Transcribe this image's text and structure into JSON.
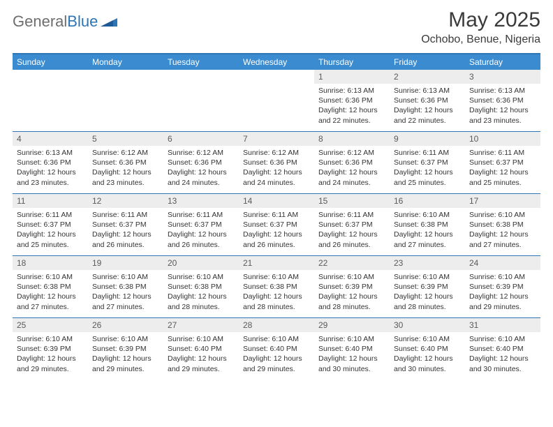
{
  "branding": {
    "logo_part1": "General",
    "logo_part2": "Blue",
    "logo_shape_color": "#2e75b6"
  },
  "header": {
    "month_title": "May 2025",
    "location": "Ochobo, Benue, Nigeria"
  },
  "styling": {
    "header_bar_color": "#3a8bd0",
    "border_color": "#2e75b6",
    "daynum_bg": "#ededed",
    "text_color": "#333333",
    "page_bg": "#ffffff",
    "dow_fontsize": 12,
    "daynum_fontsize": 12,
    "content_fontsize": 10.5,
    "title_fontsize": 30,
    "location_fontsize": 16
  },
  "days_of_week": [
    "Sunday",
    "Monday",
    "Tuesday",
    "Wednesday",
    "Thursday",
    "Friday",
    "Saturday"
  ],
  "weeks": [
    [
      {
        "n": "",
        "sr": "",
        "ss": "",
        "dl": ""
      },
      {
        "n": "",
        "sr": "",
        "ss": "",
        "dl": ""
      },
      {
        "n": "",
        "sr": "",
        "ss": "",
        "dl": ""
      },
      {
        "n": "",
        "sr": "",
        "ss": "",
        "dl": ""
      },
      {
        "n": "1",
        "sr": "Sunrise: 6:13 AM",
        "ss": "Sunset: 6:36 PM",
        "dl": "Daylight: 12 hours and 22 minutes."
      },
      {
        "n": "2",
        "sr": "Sunrise: 6:13 AM",
        "ss": "Sunset: 6:36 PM",
        "dl": "Daylight: 12 hours and 22 minutes."
      },
      {
        "n": "3",
        "sr": "Sunrise: 6:13 AM",
        "ss": "Sunset: 6:36 PM",
        "dl": "Daylight: 12 hours and 23 minutes."
      }
    ],
    [
      {
        "n": "4",
        "sr": "Sunrise: 6:13 AM",
        "ss": "Sunset: 6:36 PM",
        "dl": "Daylight: 12 hours and 23 minutes."
      },
      {
        "n": "5",
        "sr": "Sunrise: 6:12 AM",
        "ss": "Sunset: 6:36 PM",
        "dl": "Daylight: 12 hours and 23 minutes."
      },
      {
        "n": "6",
        "sr": "Sunrise: 6:12 AM",
        "ss": "Sunset: 6:36 PM",
        "dl": "Daylight: 12 hours and 24 minutes."
      },
      {
        "n": "7",
        "sr": "Sunrise: 6:12 AM",
        "ss": "Sunset: 6:36 PM",
        "dl": "Daylight: 12 hours and 24 minutes."
      },
      {
        "n": "8",
        "sr": "Sunrise: 6:12 AM",
        "ss": "Sunset: 6:36 PM",
        "dl": "Daylight: 12 hours and 24 minutes."
      },
      {
        "n": "9",
        "sr": "Sunrise: 6:11 AM",
        "ss": "Sunset: 6:37 PM",
        "dl": "Daylight: 12 hours and 25 minutes."
      },
      {
        "n": "10",
        "sr": "Sunrise: 6:11 AM",
        "ss": "Sunset: 6:37 PM",
        "dl": "Daylight: 12 hours and 25 minutes."
      }
    ],
    [
      {
        "n": "11",
        "sr": "Sunrise: 6:11 AM",
        "ss": "Sunset: 6:37 PM",
        "dl": "Daylight: 12 hours and 25 minutes."
      },
      {
        "n": "12",
        "sr": "Sunrise: 6:11 AM",
        "ss": "Sunset: 6:37 PM",
        "dl": "Daylight: 12 hours and 26 minutes."
      },
      {
        "n": "13",
        "sr": "Sunrise: 6:11 AM",
        "ss": "Sunset: 6:37 PM",
        "dl": "Daylight: 12 hours and 26 minutes."
      },
      {
        "n": "14",
        "sr": "Sunrise: 6:11 AM",
        "ss": "Sunset: 6:37 PM",
        "dl": "Daylight: 12 hours and 26 minutes."
      },
      {
        "n": "15",
        "sr": "Sunrise: 6:11 AM",
        "ss": "Sunset: 6:37 PM",
        "dl": "Daylight: 12 hours and 26 minutes."
      },
      {
        "n": "16",
        "sr": "Sunrise: 6:10 AM",
        "ss": "Sunset: 6:38 PM",
        "dl": "Daylight: 12 hours and 27 minutes."
      },
      {
        "n": "17",
        "sr": "Sunrise: 6:10 AM",
        "ss": "Sunset: 6:38 PM",
        "dl": "Daylight: 12 hours and 27 minutes."
      }
    ],
    [
      {
        "n": "18",
        "sr": "Sunrise: 6:10 AM",
        "ss": "Sunset: 6:38 PM",
        "dl": "Daylight: 12 hours and 27 minutes."
      },
      {
        "n": "19",
        "sr": "Sunrise: 6:10 AM",
        "ss": "Sunset: 6:38 PM",
        "dl": "Daylight: 12 hours and 27 minutes."
      },
      {
        "n": "20",
        "sr": "Sunrise: 6:10 AM",
        "ss": "Sunset: 6:38 PM",
        "dl": "Daylight: 12 hours and 28 minutes."
      },
      {
        "n": "21",
        "sr": "Sunrise: 6:10 AM",
        "ss": "Sunset: 6:38 PM",
        "dl": "Daylight: 12 hours and 28 minutes."
      },
      {
        "n": "22",
        "sr": "Sunrise: 6:10 AM",
        "ss": "Sunset: 6:39 PM",
        "dl": "Daylight: 12 hours and 28 minutes."
      },
      {
        "n": "23",
        "sr": "Sunrise: 6:10 AM",
        "ss": "Sunset: 6:39 PM",
        "dl": "Daylight: 12 hours and 28 minutes."
      },
      {
        "n": "24",
        "sr": "Sunrise: 6:10 AM",
        "ss": "Sunset: 6:39 PM",
        "dl": "Daylight: 12 hours and 29 minutes."
      }
    ],
    [
      {
        "n": "25",
        "sr": "Sunrise: 6:10 AM",
        "ss": "Sunset: 6:39 PM",
        "dl": "Daylight: 12 hours and 29 minutes."
      },
      {
        "n": "26",
        "sr": "Sunrise: 6:10 AM",
        "ss": "Sunset: 6:39 PM",
        "dl": "Daylight: 12 hours and 29 minutes."
      },
      {
        "n": "27",
        "sr": "Sunrise: 6:10 AM",
        "ss": "Sunset: 6:40 PM",
        "dl": "Daylight: 12 hours and 29 minutes."
      },
      {
        "n": "28",
        "sr": "Sunrise: 6:10 AM",
        "ss": "Sunset: 6:40 PM",
        "dl": "Daylight: 12 hours and 29 minutes."
      },
      {
        "n": "29",
        "sr": "Sunrise: 6:10 AM",
        "ss": "Sunset: 6:40 PM",
        "dl": "Daylight: 12 hours and 30 minutes."
      },
      {
        "n": "30",
        "sr": "Sunrise: 6:10 AM",
        "ss": "Sunset: 6:40 PM",
        "dl": "Daylight: 12 hours and 30 minutes."
      },
      {
        "n": "31",
        "sr": "Sunrise: 6:10 AM",
        "ss": "Sunset: 6:40 PM",
        "dl": "Daylight: 12 hours and 30 minutes."
      }
    ]
  ]
}
